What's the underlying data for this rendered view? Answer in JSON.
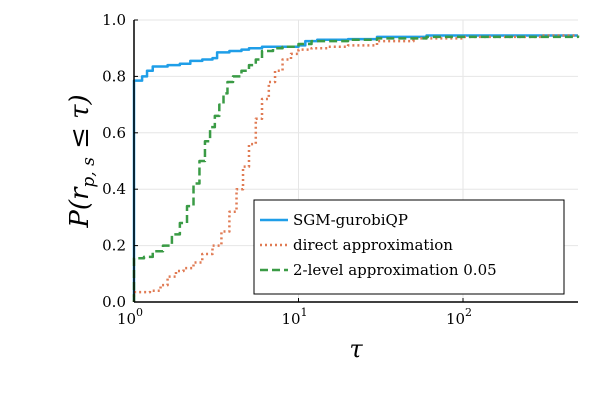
{
  "chart_data": {
    "type": "line",
    "title": "",
    "xlabel": "τ",
    "ylabel": "P(r_{p,s} ≤ τ)",
    "ylabel_parts": {
      "lead": "P(",
      "var": "r",
      "sub": "p, s",
      "tail": " ≤ τ)"
    },
    "x_scale": "log10",
    "xlim": [
      1,
      500
    ],
    "ylim": [
      0.0,
      1.0
    ],
    "x_ticks": [
      {
        "value": 1,
        "base": "10",
        "exp": "0"
      },
      {
        "value": 10,
        "base": "10",
        "exp": "1"
      },
      {
        "value": 100,
        "base": "10",
        "exp": "2"
      }
    ],
    "y_ticks": [
      {
        "value": 0.0,
        "label": "0.0"
      },
      {
        "value": 0.2,
        "label": "0.2"
      },
      {
        "value": 0.4,
        "label": "0.4"
      },
      {
        "value": 0.6,
        "label": "0.6"
      },
      {
        "value": 0.8,
        "label": "0.8"
      },
      {
        "value": 1.0,
        "label": "1.0"
      }
    ],
    "grid": true,
    "legend_position": "bottom-right",
    "series": [
      {
        "name": "SGM-gurobiQP",
        "color": "#1f9ee8",
        "style": "solid",
        "points": [
          [
            1.0,
            0.0
          ],
          [
            1.0,
            0.785
          ],
          [
            1.08,
            0.785
          ],
          [
            1.12,
            0.8
          ],
          [
            1.2,
            0.82
          ],
          [
            1.3,
            0.835
          ],
          [
            1.6,
            0.84
          ],
          [
            1.9,
            0.845
          ],
          [
            2.2,
            0.855
          ],
          [
            2.6,
            0.86
          ],
          [
            3.0,
            0.865
          ],
          [
            3.2,
            0.885
          ],
          [
            3.8,
            0.89
          ],
          [
            4.5,
            0.895
          ],
          [
            5.0,
            0.9
          ],
          [
            6.0,
            0.905
          ],
          [
            8.0,
            0.905
          ],
          [
            10.0,
            0.91
          ],
          [
            11.0,
            0.925
          ],
          [
            13.0,
            0.93
          ],
          [
            20.0,
            0.932
          ],
          [
            30.0,
            0.94
          ],
          [
            60.0,
            0.945
          ],
          [
            200.0,
            0.945
          ],
          [
            500.0,
            0.945
          ]
        ]
      },
      {
        "name": "direct approximation",
        "color": "#e07b54",
        "style": "dotted",
        "points": [
          [
            1.0,
            0.0
          ],
          [
            1.0,
            0.035
          ],
          [
            1.25,
            0.04
          ],
          [
            1.45,
            0.06
          ],
          [
            1.6,
            0.09
          ],
          [
            1.8,
            0.11
          ],
          [
            2.0,
            0.12
          ],
          [
            2.3,
            0.14
          ],
          [
            2.6,
            0.17
          ],
          [
            3.0,
            0.2
          ],
          [
            3.4,
            0.25
          ],
          [
            3.8,
            0.32
          ],
          [
            4.2,
            0.4
          ],
          [
            4.6,
            0.48
          ],
          [
            5.0,
            0.56
          ],
          [
            5.5,
            0.65
          ],
          [
            6.0,
            0.72
          ],
          [
            6.6,
            0.78
          ],
          [
            7.2,
            0.82
          ],
          [
            8.0,
            0.86
          ],
          [
            9.0,
            0.88
          ],
          [
            10.0,
            0.895
          ],
          [
            12.0,
            0.9
          ],
          [
            15.0,
            0.905
          ],
          [
            20.0,
            0.91
          ],
          [
            30.0,
            0.925
          ],
          [
            50.0,
            0.935
          ],
          [
            100.0,
            0.94
          ],
          [
            300.0,
            0.945
          ],
          [
            500.0,
            0.945
          ]
        ]
      },
      {
        "name": "2-level approximation 0.05",
        "color": "#3a9b45",
        "style": "dashed",
        "points": [
          [
            1.0,
            0.0
          ],
          [
            1.0,
            0.155
          ],
          [
            1.15,
            0.16
          ],
          [
            1.3,
            0.18
          ],
          [
            1.5,
            0.2
          ],
          [
            1.7,
            0.24
          ],
          [
            1.9,
            0.28
          ],
          [
            2.1,
            0.34
          ],
          [
            2.3,
            0.42
          ],
          [
            2.5,
            0.5
          ],
          [
            2.7,
            0.57
          ],
          [
            2.9,
            0.62
          ],
          [
            3.1,
            0.66
          ],
          [
            3.3,
            0.7
          ],
          [
            3.5,
            0.74
          ],
          [
            3.7,
            0.78
          ],
          [
            4.0,
            0.8
          ],
          [
            4.5,
            0.82
          ],
          [
            5.0,
            0.84
          ],
          [
            5.5,
            0.86
          ],
          [
            6.0,
            0.89
          ],
          [
            7.0,
            0.9
          ],
          [
            8.0,
            0.905
          ],
          [
            10.0,
            0.915
          ],
          [
            12.0,
            0.925
          ],
          [
            20.0,
            0.93
          ],
          [
            30.0,
            0.935
          ],
          [
            60.0,
            0.94
          ],
          [
            100.0,
            0.94
          ],
          [
            500.0,
            0.945
          ]
        ]
      }
    ]
  }
}
